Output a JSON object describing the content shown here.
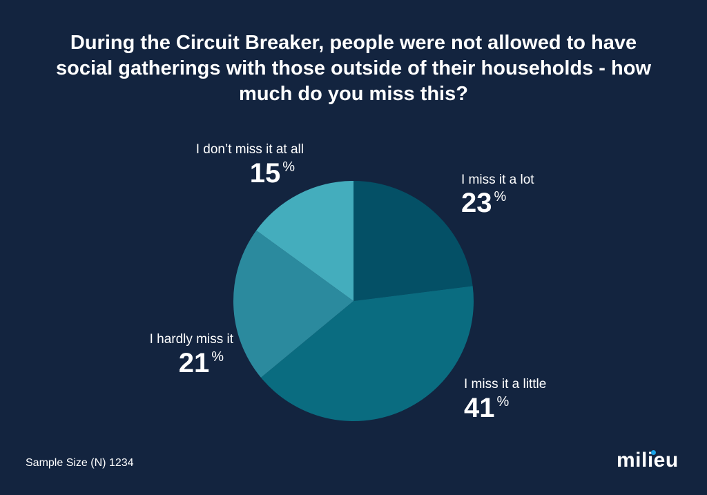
{
  "title": "During the Circuit Breaker, people were not allowed to have social gatherings with those outside of their households - how much do you miss this?",
  "sample_size": "Sample Size (N)  1234",
  "logo": "milieu",
  "chart_data": {
    "type": "pie",
    "title": "During the Circuit Breaker, people were not allowed to have social gatherings with those outside of their households - how much do you miss this?",
    "categories": [
      "I miss it a lot",
      "I miss it a little",
      "I hardly miss it",
      "I don’t miss it at all"
    ],
    "values": [
      23,
      41,
      21,
      15
    ],
    "labels": [
      "23",
      "41",
      "21",
      "15"
    ],
    "unit": "%",
    "colors": [
      "#045066",
      "#0a6c80",
      "#2b8a9e",
      "#44adbd"
    ],
    "start": "top, clockwise"
  }
}
